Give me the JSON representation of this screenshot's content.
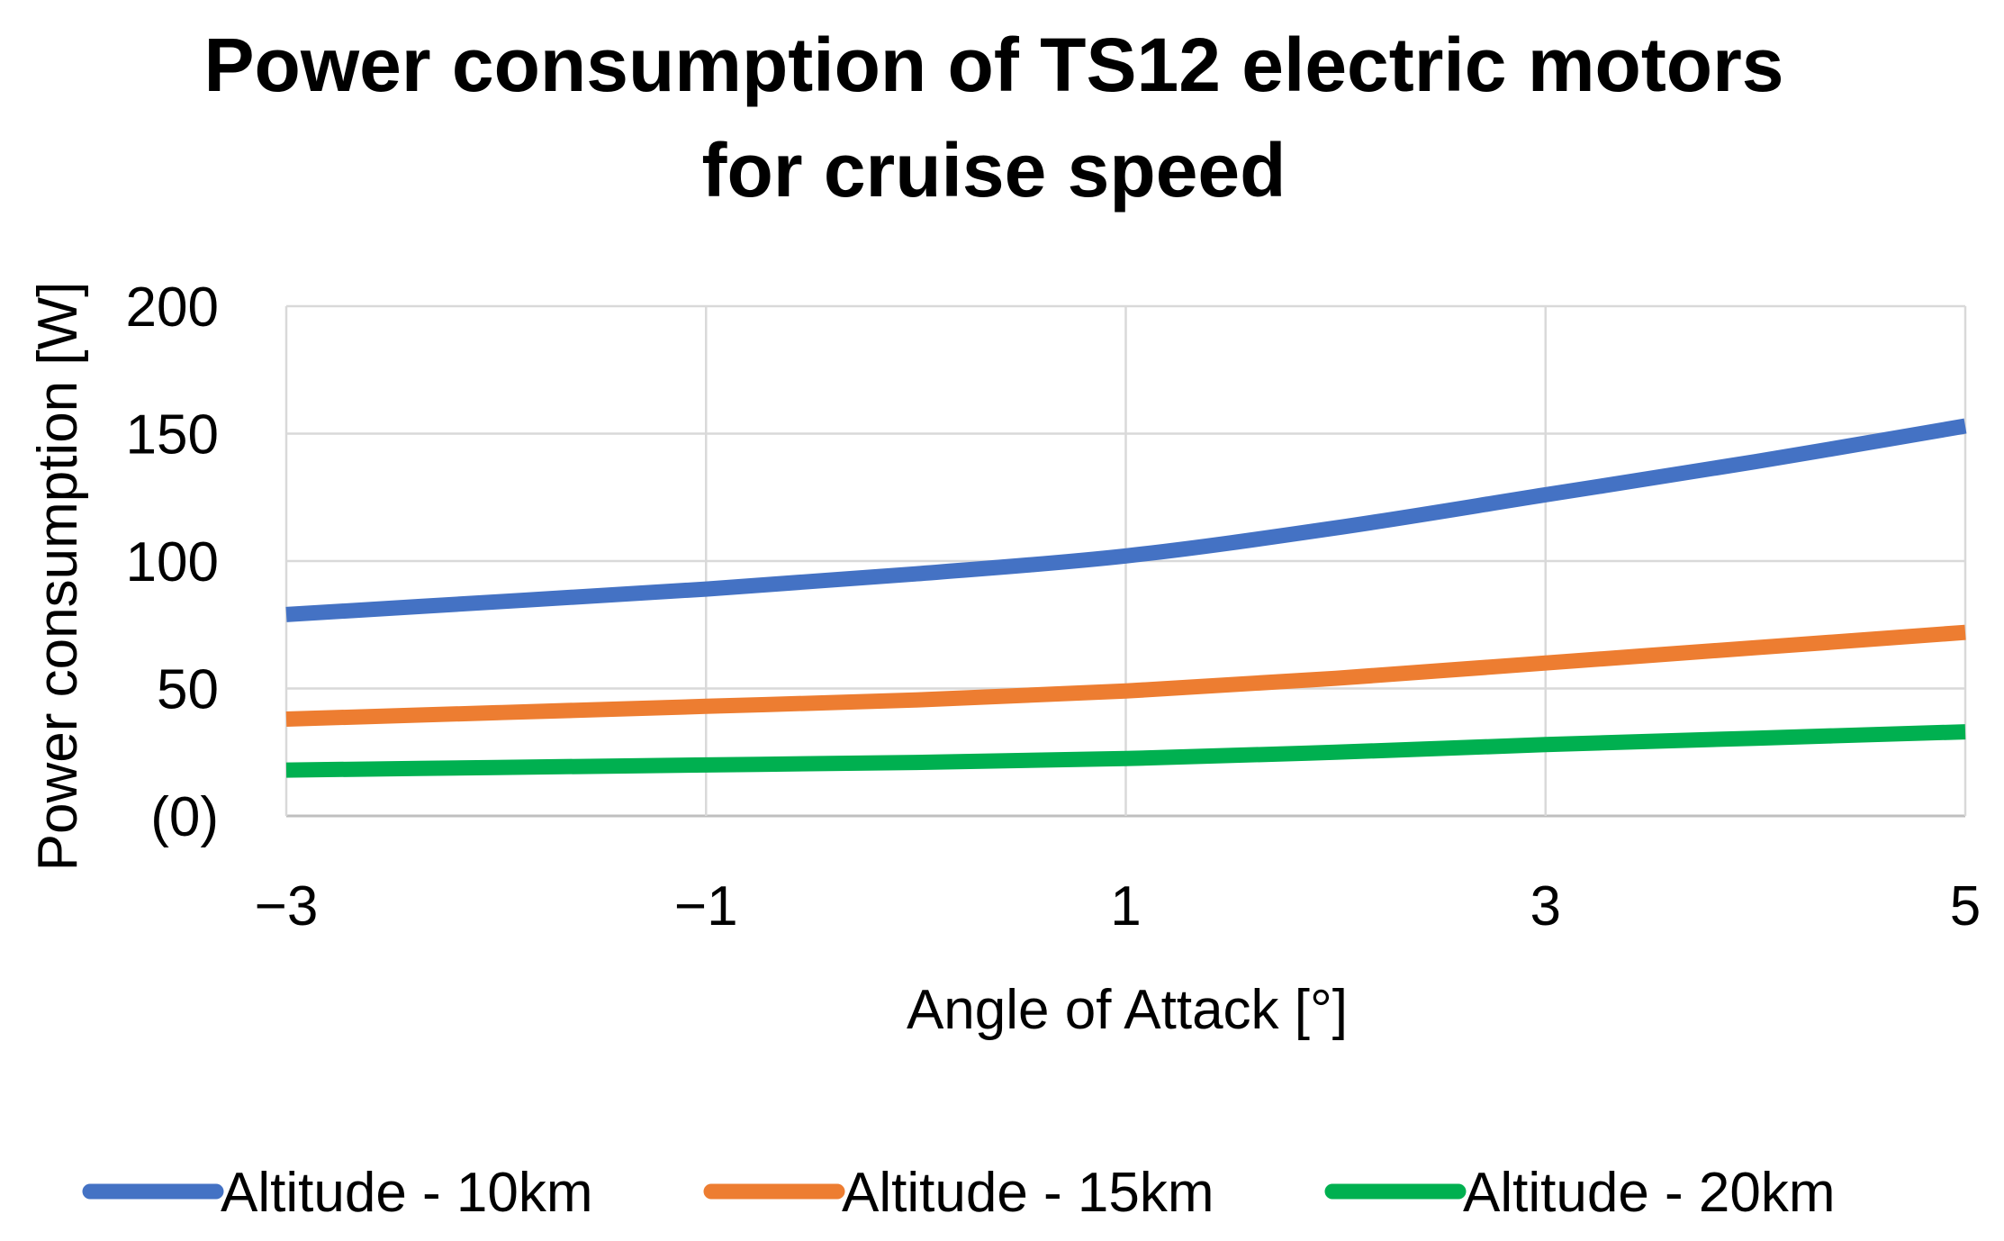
{
  "chart_data": {
    "type": "line",
    "title_lines": [
      "Power consumption of TS12 electric motors",
      "for cruise speed"
    ],
    "xlabel": "Angle of Attack [°]",
    "ylabel": "Power consumption [W]",
    "xlim": [
      -3,
      5
    ],
    "ylim": [
      0,
      200
    ],
    "x_ticks": [
      -3,
      -1,
      1,
      3,
      5
    ],
    "x_tick_labels": [
      "−3",
      "−1",
      "1",
      "3",
      "5"
    ],
    "y_ticks": [
      0,
      50,
      100,
      150,
      200
    ],
    "y_tick_labels": [
      "(0)",
      "50",
      "100",
      "150",
      "200"
    ],
    "grid": true,
    "legend_position": "bottom",
    "x": [
      -3,
      -2,
      -1,
      0,
      1,
      2,
      3,
      4,
      5
    ],
    "series": [
      {
        "name": "Altitude - 10km",
        "color": "#4472C4",
        "values": [
          79,
          84,
          89,
          95,
          102,
          113,
          126,
          139,
          153
        ]
      },
      {
        "name": "Altitude - 15km",
        "color": "#ED7D31",
        "values": [
          38,
          40.5,
          43,
          45.5,
          49,
          54,
          60,
          66,
          72
        ]
      },
      {
        "name": "Altitude - 20km",
        "color": "#00B050",
        "values": [
          18,
          19,
          20,
          21,
          22.5,
          25,
          28,
          30.5,
          33
        ]
      }
    ]
  }
}
